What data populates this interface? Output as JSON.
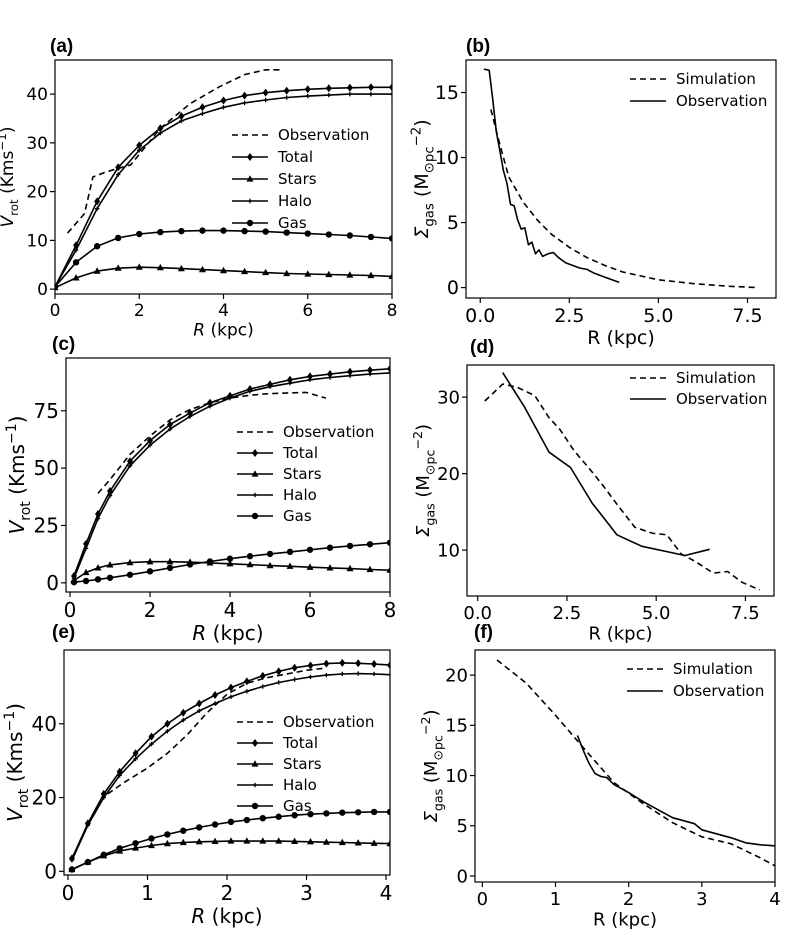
{
  "figure": {
    "background": "#ffffff",
    "ink": "#000000"
  },
  "chart_data": [
    {
      "panel": "(a)",
      "type": "line",
      "xlabel": "R (kpc)",
      "ylabel": "V_rot (Kms^-1)",
      "xlim": [
        0,
        8
      ],
      "ylim": [
        -1,
        47
      ],
      "xticks": [
        0,
        2,
        4,
        6,
        8
      ],
      "yticks": [
        0,
        10,
        20,
        30,
        40
      ],
      "xtick_labels": [
        "0",
        "2",
        "4",
        "6",
        "8"
      ],
      "ytick_labels": [
        "0",
        "10",
        "20",
        "30",
        "40"
      ],
      "legend_position": "center-right",
      "series": [
        {
          "name": "Observation",
          "style": "dashed",
          "marker": "none",
          "x": [
            0.3,
            0.7,
            0.9,
            1.2,
            1.8,
            2.5,
            3.2,
            3.9,
            4.5,
            5.0,
            5.4
          ],
          "y": [
            11.5,
            15.5,
            23,
            24,
            25.5,
            33,
            38,
            41.5,
            44,
            45,
            45
          ]
        },
        {
          "name": "Total",
          "style": "solid",
          "marker": "diamond",
          "x": [
            0,
            0.5,
            1,
            1.5,
            2,
            2.5,
            3,
            3.5,
            4,
            4.5,
            5,
            5.5,
            6,
            6.5,
            7,
            7.5,
            8
          ],
          "y": [
            0.5,
            9,
            18,
            25,
            29.5,
            33,
            35.5,
            37.3,
            38.7,
            39.7,
            40.3,
            40.7,
            41,
            41.2,
            41.3,
            41.4,
            41.4
          ]
        },
        {
          "name": "Stars",
          "style": "solid",
          "marker": "triangle",
          "x": [
            0,
            0.5,
            1,
            1.5,
            2,
            2.5,
            3,
            3.5,
            4,
            4.5,
            5,
            5.5,
            6,
            6.5,
            7,
            7.5,
            8
          ],
          "y": [
            0.3,
            2.3,
            3.7,
            4.3,
            4.5,
            4.4,
            4.2,
            4.0,
            3.8,
            3.6,
            3.4,
            3.2,
            3.1,
            3.0,
            2.9,
            2.8,
            2.6
          ]
        },
        {
          "name": "Halo",
          "style": "solid",
          "marker": "small-plus",
          "x": [
            0,
            0.5,
            1,
            1.5,
            2,
            2.5,
            3,
            3.5,
            4,
            4.5,
            5,
            5.5,
            6,
            6.5,
            7,
            7.5,
            8
          ],
          "y": [
            0.5,
            8,
            16.5,
            23.5,
            28.5,
            32,
            34.5,
            36,
            37.3,
            38.2,
            38.8,
            39.3,
            39.6,
            39.8,
            40.0,
            40.0,
            40.0
          ]
        },
        {
          "name": "Gas",
          "style": "solid",
          "marker": "circle",
          "x": [
            0,
            0.5,
            1,
            1.5,
            2,
            2.5,
            3,
            3.5,
            4,
            4.5,
            5,
            5.5,
            6,
            6.5,
            7,
            7.5,
            8
          ],
          "y": [
            0.5,
            5.5,
            8.8,
            10.5,
            11.3,
            11.7,
            11.9,
            12.0,
            12.0,
            11.9,
            11.8,
            11.6,
            11.4,
            11.2,
            11.0,
            10.7,
            10.4
          ]
        }
      ]
    },
    {
      "panel": "(b)",
      "type": "line",
      "xlabel": "R (kpc)",
      "ylabel": "Σ_gas (M_⊙pc^-2)",
      "xlim": [
        -0.4,
        8.3
      ],
      "ylim": [
        -0.8,
        17.5
      ],
      "xticks": [
        0,
        2.5,
        5,
        7.5
      ],
      "yticks": [
        0,
        5,
        10,
        15
      ],
      "xtick_labels": [
        "0.0",
        "2.5",
        "5.0",
        "7.5"
      ],
      "ytick_labels": [
        "0",
        "5",
        "10",
        "15"
      ],
      "legend_position": "top-right",
      "series": [
        {
          "name": "Simulation",
          "style": "dashed",
          "x": [
            0.3,
            0.5,
            0.8,
            1.2,
            1.6,
            2.0,
            2.5,
            3.0,
            3.5,
            4.0,
            5.0,
            6.0,
            7.0,
            7.8
          ],
          "y": [
            13.7,
            11.5,
            8.5,
            6.6,
            5.2,
            4.1,
            3.1,
            2.3,
            1.7,
            1.2,
            0.6,
            0.3,
            0.1,
            0.0
          ]
        },
        {
          "name": "Observation",
          "style": "solid",
          "x": [
            0.1,
            0.25,
            0.35,
            0.45,
            0.55,
            0.65,
            0.75,
            0.85,
            0.95,
            1.05,
            1.15,
            1.25,
            1.35,
            1.45,
            1.55,
            1.65,
            1.75,
            1.9,
            2.05,
            2.2,
            2.4,
            2.6,
            2.8,
            3.0,
            3.2,
            3.4,
            3.6,
            3.9
          ],
          "y": [
            16.8,
            16.7,
            14.5,
            12.0,
            10.5,
            9.0,
            8.0,
            6.4,
            6.3,
            5.2,
            4.5,
            4.6,
            3.3,
            3.5,
            2.6,
            2.9,
            2.4,
            2.6,
            2.7,
            2.3,
            1.9,
            1.7,
            1.5,
            1.4,
            1.1,
            0.9,
            0.7,
            0.4
          ]
        }
      ]
    },
    {
      "panel": "(c)",
      "type": "line",
      "xlabel": "R (kpc)",
      "ylabel": "V_rot (Kms^-1)",
      "xlim": [
        -0.1,
        8.0
      ],
      "ylim": [
        -4,
        98
      ],
      "xticks": [
        0,
        2,
        4,
        6,
        8
      ],
      "yticks": [
        0,
        25,
        50,
        75
      ],
      "xtick_labels": [
        "0",
        "2",
        "4",
        "6",
        "8"
      ],
      "ytick_labels": [
        "0",
        "25",
        "50",
        "75"
      ],
      "legend_position": "center-right",
      "series": [
        {
          "name": "Observation",
          "style": "dashed",
          "marker": "none",
          "x": [
            0.7,
            1.0,
            1.5,
            2.0,
            2.5,
            3.0,
            3.5,
            4.0,
            4.5,
            5.0,
            5.5,
            5.9,
            6.4
          ],
          "y": [
            39,
            45,
            56,
            64,
            71,
            75.5,
            78.5,
            80.5,
            81.8,
            82.5,
            82.8,
            83.0,
            80.5
          ]
        },
        {
          "name": "Total",
          "style": "solid",
          "marker": "diamond",
          "x": [
            0.1,
            0.4,
            0.7,
            1.0,
            1.5,
            2.0,
            2.5,
            3.0,
            3.5,
            4.0,
            4.5,
            5.0,
            5.5,
            6.0,
            6.5,
            7.0,
            7.5,
            8.0
          ],
          "y": [
            3,
            17,
            30,
            40,
            53,
            62,
            69,
            74,
            78.5,
            81.5,
            84.5,
            86.5,
            88.5,
            90,
            91,
            92,
            92.7,
            93.3
          ]
        },
        {
          "name": "Stars",
          "style": "solid",
          "marker": "triangle",
          "x": [
            0.1,
            0.4,
            0.7,
            1.0,
            1.5,
            2.0,
            2.5,
            3.0,
            3.5,
            4.0,
            4.5,
            5.0,
            5.5,
            6.0,
            6.5,
            7.0,
            7.5,
            8.0
          ],
          "y": [
            1,
            4.5,
            6.5,
            7.8,
            8.8,
            9.2,
            9.2,
            9.0,
            8.7,
            8.3,
            7.9,
            7.5,
            7.2,
            6.8,
            6.5,
            6.2,
            5.8,
            5.5
          ]
        },
        {
          "name": "Halo",
          "style": "solid",
          "marker": "small-plus",
          "x": [
            0.1,
            0.4,
            0.7,
            1.0,
            1.5,
            2.0,
            2.5,
            3.0,
            3.5,
            4.0,
            4.5,
            5.0,
            5.5,
            6.0,
            6.5,
            7.0,
            7.5,
            8.0
          ],
          "y": [
            2,
            15,
            28,
            38,
            51,
            60,
            67,
            72.5,
            77,
            80.5,
            83.5,
            85.5,
            87,
            88.5,
            89.5,
            90.3,
            91,
            91.5
          ]
        },
        {
          "name": "Gas",
          "style": "solid",
          "marker": "circle",
          "x": [
            0.1,
            0.4,
            0.7,
            1.0,
            1.5,
            2.0,
            2.5,
            3.0,
            3.5,
            4.0,
            4.5,
            5.0,
            5.5,
            6.0,
            6.5,
            7.0,
            7.5,
            8.0
          ],
          "y": [
            0.3,
            0.8,
            1.5,
            2.2,
            3.5,
            5.0,
            6.5,
            8.0,
            9.3,
            10.5,
            11.6,
            12.6,
            13.5,
            14.4,
            15.3,
            16.1,
            16.8,
            17.5
          ]
        }
      ]
    },
    {
      "panel": "(d)",
      "type": "line",
      "xlabel": "R (kpc)",
      "ylabel": "Σ_gas (M_⊙pc^-2)",
      "xlim": [
        -0.3,
        8.3
      ],
      "ylim": [
        4,
        34.2
      ],
      "xticks": [
        0,
        2.5,
        5,
        7.5
      ],
      "yticks": [
        10,
        20,
        30
      ],
      "xtick_labels": [
        "0.0",
        "2.5",
        "5.0",
        "7.5"
      ],
      "ytick_labels": [
        "10",
        "20",
        "30"
      ],
      "legend_position": "top-right",
      "series": [
        {
          "name": "Simulation",
          "style": "dashed",
          "x": [
            0.2,
            0.7,
            1.1,
            1.6,
            2.0,
            2.3,
            2.7,
            3.1,
            3.5,
            3.9,
            4.4,
            4.9,
            5.3,
            5.7,
            6.1,
            6.6,
            7.0,
            7.4,
            7.9
          ],
          "y": [
            29.5,
            31.7,
            31.3,
            30.2,
            27.3,
            25.8,
            23.0,
            20.8,
            18.5,
            16.0,
            13.0,
            12.2,
            12.0,
            9.5,
            8.5,
            7.0,
            7.2,
            5.8,
            4.8
          ]
        },
        {
          "name": "Observation",
          "style": "solid",
          "x": [
            0.7,
            1.3,
            2.0,
            2.6,
            3.2,
            3.9,
            4.6,
            5.3,
            5.8,
            6.5
          ],
          "y": [
            33.2,
            28.8,
            22.8,
            20.8,
            16.2,
            12.0,
            10.5,
            9.8,
            9.3,
            10.1
          ]
        }
      ]
    },
    {
      "panel": "(e)",
      "type": "line",
      "xlabel": "R (kpc)",
      "ylabel": "V_rot (Kms^-1)",
      "xlim": [
        -0.05,
        4.05
      ],
      "ylim": [
        -1,
        60
      ],
      "xticks": [
        0,
        1,
        2,
        3,
        4
      ],
      "yticks": [
        0,
        20,
        40
      ],
      "xtick_labels": [
        "0",
        "1",
        "2",
        "3",
        "4"
      ],
      "ytick_labels": [
        "0",
        "20",
        "40"
      ],
      "legend_position": "center-right",
      "series": [
        {
          "name": "Observation",
          "style": "dashed",
          "marker": "none",
          "x": [
            0.5,
            0.7,
            1.0,
            1.25,
            1.5,
            1.75,
            2.0,
            2.25,
            2.5,
            2.75,
            3.0,
            3.2
          ],
          "y": [
            21,
            24,
            28,
            32,
            37,
            43,
            48,
            51,
            52.5,
            53.5,
            54.5,
            55
          ]
        },
        {
          "name": "Total",
          "style": "solid",
          "marker": "diamond",
          "x": [
            0.05,
            0.25,
            0.45,
            0.65,
            0.85,
            1.05,
            1.25,
            1.45,
            1.65,
            1.85,
            2.05,
            2.25,
            2.45,
            2.65,
            2.85,
            3.05,
            3.25,
            3.45,
            3.65,
            3.85,
            4.05
          ],
          "y": [
            3.5,
            13,
            21,
            27,
            32,
            36.5,
            40,
            43,
            45.5,
            47.8,
            49.8,
            51.5,
            53,
            54.2,
            55.2,
            55.8,
            56.3,
            56.5,
            56.4,
            56.2,
            55.9
          ]
        },
        {
          "name": "Stars",
          "style": "solid",
          "marker": "triangle",
          "x": [
            0.05,
            0.25,
            0.45,
            0.65,
            0.85,
            1.05,
            1.25,
            1.45,
            1.65,
            1.85,
            2.05,
            2.25,
            2.45,
            2.65,
            2.85,
            3.05,
            3.25,
            3.45,
            3.65,
            3.85,
            4.05
          ],
          "y": [
            0.5,
            2.5,
            4.2,
            5.5,
            6.3,
            7.0,
            7.5,
            7.8,
            8.0,
            8.1,
            8.2,
            8.2,
            8.2,
            8.2,
            8.1,
            8.0,
            7.9,
            7.8,
            7.7,
            7.6,
            7.5
          ]
        },
        {
          "name": "Halo",
          "style": "solid",
          "marker": "small-plus",
          "x": [
            0.05,
            0.25,
            0.45,
            0.65,
            0.85,
            1.05,
            1.25,
            1.45,
            1.65,
            1.85,
            2.05,
            2.25,
            2.45,
            2.65,
            2.85,
            3.05,
            3.25,
            3.45,
            3.65,
            3.85,
            4.05
          ],
          "y": [
            3,
            12.5,
            20,
            26,
            30.5,
            34.5,
            38,
            41,
            43.5,
            45.5,
            47.3,
            48.8,
            50.1,
            51.2,
            52.0,
            52.7,
            53.2,
            53.5,
            53.6,
            53.5,
            53.3
          ]
        },
        {
          "name": "Gas",
          "style": "solid",
          "marker": "circle",
          "x": [
            0.05,
            0.25,
            0.45,
            0.65,
            0.85,
            1.05,
            1.25,
            1.45,
            1.65,
            1.85,
            2.05,
            2.25,
            2.45,
            2.65,
            2.85,
            3.05,
            3.25,
            3.45,
            3.65,
            3.85,
            4.05
          ],
          "y": [
            0.5,
            2.5,
            4.5,
            6.2,
            7.6,
            8.9,
            10.0,
            11.0,
            11.9,
            12.7,
            13.4,
            13.9,
            14.4,
            14.8,
            15.2,
            15.5,
            15.7,
            15.9,
            16.0,
            16.1,
            16.1
          ]
        }
      ]
    },
    {
      "panel": "(f)",
      "type": "line",
      "xlabel": "R (kpc)",
      "ylabel": "Σ_gas (M_⊙pc^-2)",
      "xlim": [
        -0.1,
        4.0
      ],
      "ylim": [
        -0.6,
        22.5
      ],
      "xticks": [
        0,
        1,
        2,
        3,
        4
      ],
      "yticks": [
        0,
        5,
        10,
        15,
        20
      ],
      "xtick_labels": [
        "0",
        "1",
        "2",
        "3",
        "4"
      ],
      "ytick_labels": [
        "0",
        "5",
        "10",
        "15",
        "20"
      ],
      "legend_position": "top-right",
      "series": [
        {
          "name": "Simulation",
          "style": "dashed",
          "x": [
            0.2,
            0.6,
            1.0,
            1.4,
            1.8,
            2.2,
            2.6,
            3.0,
            3.4,
            3.8,
            4.0
          ],
          "y": [
            21.5,
            19.2,
            16.0,
            12.6,
            9.3,
            7.2,
            5.3,
            3.9,
            3.2,
            1.8,
            1.0
          ]
        },
        {
          "name": "Observation",
          "style": "solid",
          "x": [
            1.3,
            1.38,
            1.46,
            1.54,
            1.62,
            1.7,
            1.8,
            2.0,
            2.2,
            2.4,
            2.6,
            2.8,
            2.9,
            3.0,
            3.2,
            3.4,
            3.6,
            3.8,
            4.0
          ],
          "y": [
            14.0,
            12.5,
            11.2,
            10.2,
            9.9,
            9.8,
            9.1,
            8.3,
            7.4,
            6.6,
            5.8,
            5.4,
            5.2,
            4.6,
            4.2,
            3.8,
            3.3,
            3.1,
            3.0
          ]
        }
      ]
    }
  ]
}
